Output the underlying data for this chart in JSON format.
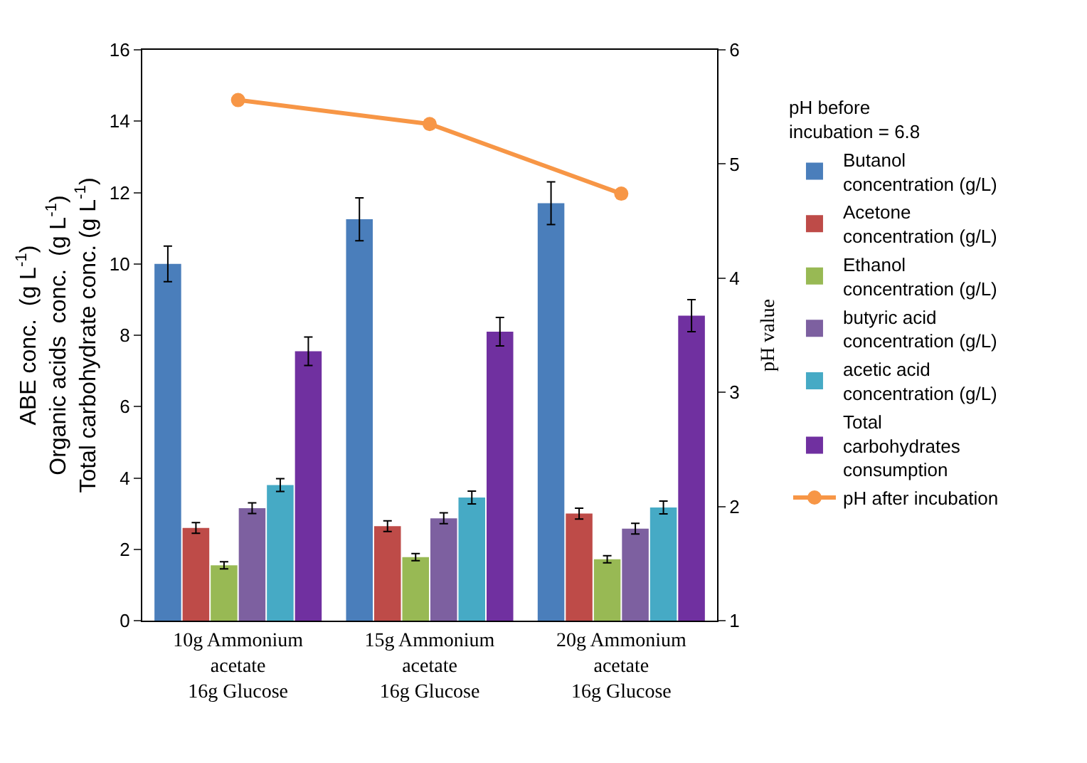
{
  "chart_data": {
    "type": "bar",
    "categories": [
      "10g Ammonium\nacetate\n16g Glucose",
      "15g Ammonium\nacetate\n16g Glucose",
      "20g Ammonium\nacetate\n16g Glucose"
    ],
    "ylabel": "ABE conc.  (g L$^{-1}$)\nOrganic acids  conc.  (g L$^{-1}$)\nTotal carbohydrate conc. (g L$^{-1}$)",
    "y2label": "pH value",
    "ylim": [
      0,
      16
    ],
    "yticks": [
      0,
      2,
      4,
      6,
      8,
      10,
      12,
      14,
      16
    ],
    "y2lim": [
      1,
      6
    ],
    "y2ticks": [
      1,
      2,
      3,
      4,
      5,
      6
    ],
    "legend": "right",
    "legend_title": "pH before\nincubation = 6.8",
    "series": [
      {
        "name": "Butanol\nconcentration (g/L)",
        "color": "#4a7ebb",
        "values": [
          10.0,
          11.25,
          11.7
        ],
        "errors": [
          0.5,
          0.6,
          0.6
        ]
      },
      {
        "name": "Acetone\nconcentration (g/L)",
        "color": "#be4b48",
        "values": [
          2.6,
          2.65,
          3.0
        ],
        "errors": [
          0.15,
          0.15,
          0.15
        ]
      },
      {
        "name": "Ethanol\nconcentration (g/L)",
        "color": "#98b954",
        "values": [
          1.55,
          1.78,
          1.72
        ],
        "errors": [
          0.1,
          0.1,
          0.1
        ]
      },
      {
        "name": "butyric acid\nconcentration (g/L)",
        "color": "#7d60a0",
        "values": [
          3.15,
          2.87,
          2.58
        ],
        "errors": [
          0.15,
          0.15,
          0.15
        ]
      },
      {
        "name": "acetic acid\nconcentration (g/L)",
        "color": "#46aac5",
        "values": [
          3.8,
          3.45,
          3.17
        ],
        "errors": [
          0.18,
          0.18,
          0.18
        ]
      },
      {
        "name": "Total\ncarbohydrates\nconsumption",
        "color": "#7030a0",
        "values": [
          7.55,
          8.1,
          8.55
        ],
        "errors": [
          0.4,
          0.4,
          0.45
        ]
      },
      {
        "name": "pH after incubation",
        "type": "line",
        "axis": "y2",
        "color": "#f79646",
        "marker": "circle",
        "values": [
          5.56,
          5.35,
          4.74
        ]
      }
    ]
  }
}
